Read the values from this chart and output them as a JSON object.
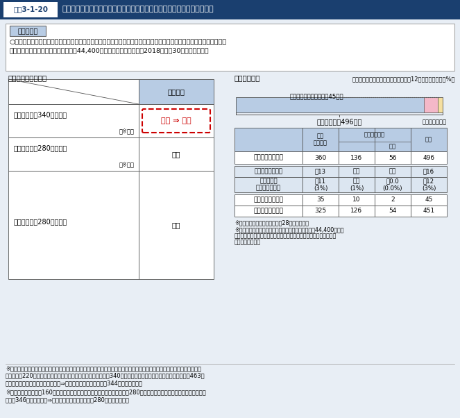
{
  "title_label": "図表3-1-20",
  "title_text": "介護保険における現役世代並みの所得のある者の利用者負担割合の見直し",
  "background_color": "#e8eef5",
  "notice_box_title": "見直し内容",
  "notice_line1": "○世代間・世代内の公平性を確保しつつ、制度の持続可能性を高める観点から、２割負担者のうち特に所得の高い層の負",
  "notice_line2": "　担割合を３割とする。ただし、月額44,400円の負担の上限あり。【2018（平成30）年８月施行】",
  "left_section_title": "【利用者負担割合】",
  "right_section_title": "【対象者数】",
  "table_header_bg": "#b8cce4",
  "table_alt_bg": "#dce6f1",
  "row1_label1": "年金収入等　340万円以上",
  "row1_label2": "（※１）",
  "row1_value": "２割 ⇒ ３割",
  "row2_label1": "年金収入等　280万円以上",
  "row2_label2": "（※２）",
  "row2_value": "２割",
  "row3_label": "年金収入等　280万円未満",
  "row3_value": "１割",
  "arrow_text1": "３割負担となり、負担増となる者：約12万人（全体の約３%）",
  "arrow_text2": "現行制度の２割負担者：45万人",
  "total_text": "受給者全体：496万人",
  "unit_text": "（単位：万人）",
  "footnote1": "※介護保険事業状況報告（平成28年４月月報）",
  "footnote2a": "※特養入所者の一般的な費用額の２割相当分は、既に44,400円の上",
  "footnote2b": "　限に当たっているため、３割負担となっても、負担増となる方はほ",
  "footnote2c": "　とんどいない。",
  "bottom_note1a": "※１　具体的な基準は政令事項。現時点では、「合計所得金額（給与収入や事業収入等から給与所得控除や必要経費を控除し",
  "bottom_note1b": "　　た額）220万円以上」かつ「年金収入＋その他合計所得金額340万円以上（単身世帯の場合。夫婦世帯の場合463万",
  "bottom_note1c": "　　円以上）」とすることを想定。⇒単身で年金収入のみの場合344万円以上に相当",
  "bottom_note2a": "※２　「合計所得金額160万円以上」かつ「年金収入＋その他合計所得金額280万円以上（単身世帯の場合。夫婦世帯の場",
  "bottom_note2b": "　　合346万円以上）」⇒単身で年金収入のみの場合280万円以上に相当",
  "t1_data": [
    "受給者数（実績）",
    "360",
    "136",
    "56",
    "496"
  ],
  "t2_row1": [
    "３割負担（推計）",
    "約13",
    "約４",
    "約１",
    "約16"
  ],
  "t2_row2a": [
    "うち負担増",
    "約11",
    "約１",
    "約0.0",
    "約12"
  ],
  "t2_row2b": [
    "（対受給者数）",
    "(3%)",
    "(1%)",
    "(0.0%)",
    "(3%)"
  ],
  "t3_row1": [
    "２割負担（実績）",
    "35",
    "10",
    "2",
    "45"
  ],
  "t3_row2": [
    "１割負担（実績）",
    "325",
    "126",
    "54",
    "451"
  ]
}
